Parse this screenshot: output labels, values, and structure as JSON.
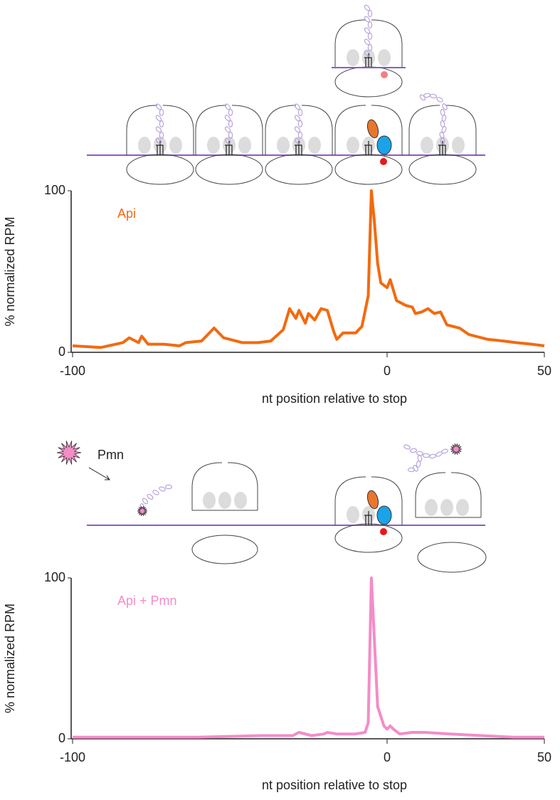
{
  "chart_data": [
    {
      "type": "line",
      "title": "Api",
      "ylabel": "% normalized RPM",
      "xlabel": "nt position relative to stop",
      "xlim": [
        -100,
        50
      ],
      "xticks": [
        -100,
        0,
        50
      ],
      "ylim": [
        0,
        100
      ],
      "yticks": [
        0,
        100
      ],
      "color": "#f26a0f",
      "x": [
        -100,
        -91,
        -84,
        -82,
        -79,
        -78,
        -76,
        -71,
        -66,
        -64,
        -59,
        -57,
        -55,
        -52,
        -50,
        -46,
        -41,
        -37,
        -33,
        -31,
        -29,
        -28,
        -26,
        -25,
        -23,
        -21,
        -19,
        -17,
        -16,
        -14,
        -10,
        -8,
        -6,
        -5,
        -4,
        -3,
        -2,
        0,
        1,
        3,
        6,
        8,
        9,
        11,
        13,
        15,
        17,
        19,
        23,
        26,
        32,
        37,
        41,
        46,
        50
      ],
      "values": [
        4,
        3,
        6,
        9,
        6,
        10,
        5,
        5,
        4,
        6,
        7,
        11,
        15,
        9,
        8,
        6,
        6,
        7,
        14,
        27,
        21,
        26,
        18,
        24,
        20,
        27,
        26,
        13,
        8,
        12,
        12,
        16,
        35,
        100,
        80,
        55,
        43,
        40,
        45,
        32,
        29,
        28,
        24,
        25,
        27,
        24,
        25,
        17,
        15,
        11,
        8,
        7,
        6,
        5,
        4
      ]
    },
    {
      "type": "line",
      "title": "Api + Pmn",
      "ylabel": "% normalized RPM",
      "xlabel": "nt position relative to stop",
      "xlim": [
        -100,
        50
      ],
      "xticks": [
        -100,
        0,
        50
      ],
      "ylim": [
        0,
        100
      ],
      "yticks": [
        0,
        100
      ],
      "color": "#f48cc8",
      "x": [
        -100,
        -80,
        -60,
        -40,
        -30,
        -28,
        -24,
        -20,
        -19,
        -16,
        -10,
        -7,
        -6,
        -5,
        -4,
        -3,
        -1,
        0,
        1,
        2,
        4,
        8,
        12,
        20,
        30,
        40,
        50
      ],
      "values": [
        1,
        1,
        1,
        2,
        2,
        4,
        2,
        3,
        4,
        3,
        3,
        4,
        10,
        100,
        60,
        20,
        8,
        6,
        8,
        6,
        3,
        4,
        4,
        3,
        2,
        1,
        1
      ]
    }
  ],
  "diagram": {
    "label": "Pmn"
  }
}
